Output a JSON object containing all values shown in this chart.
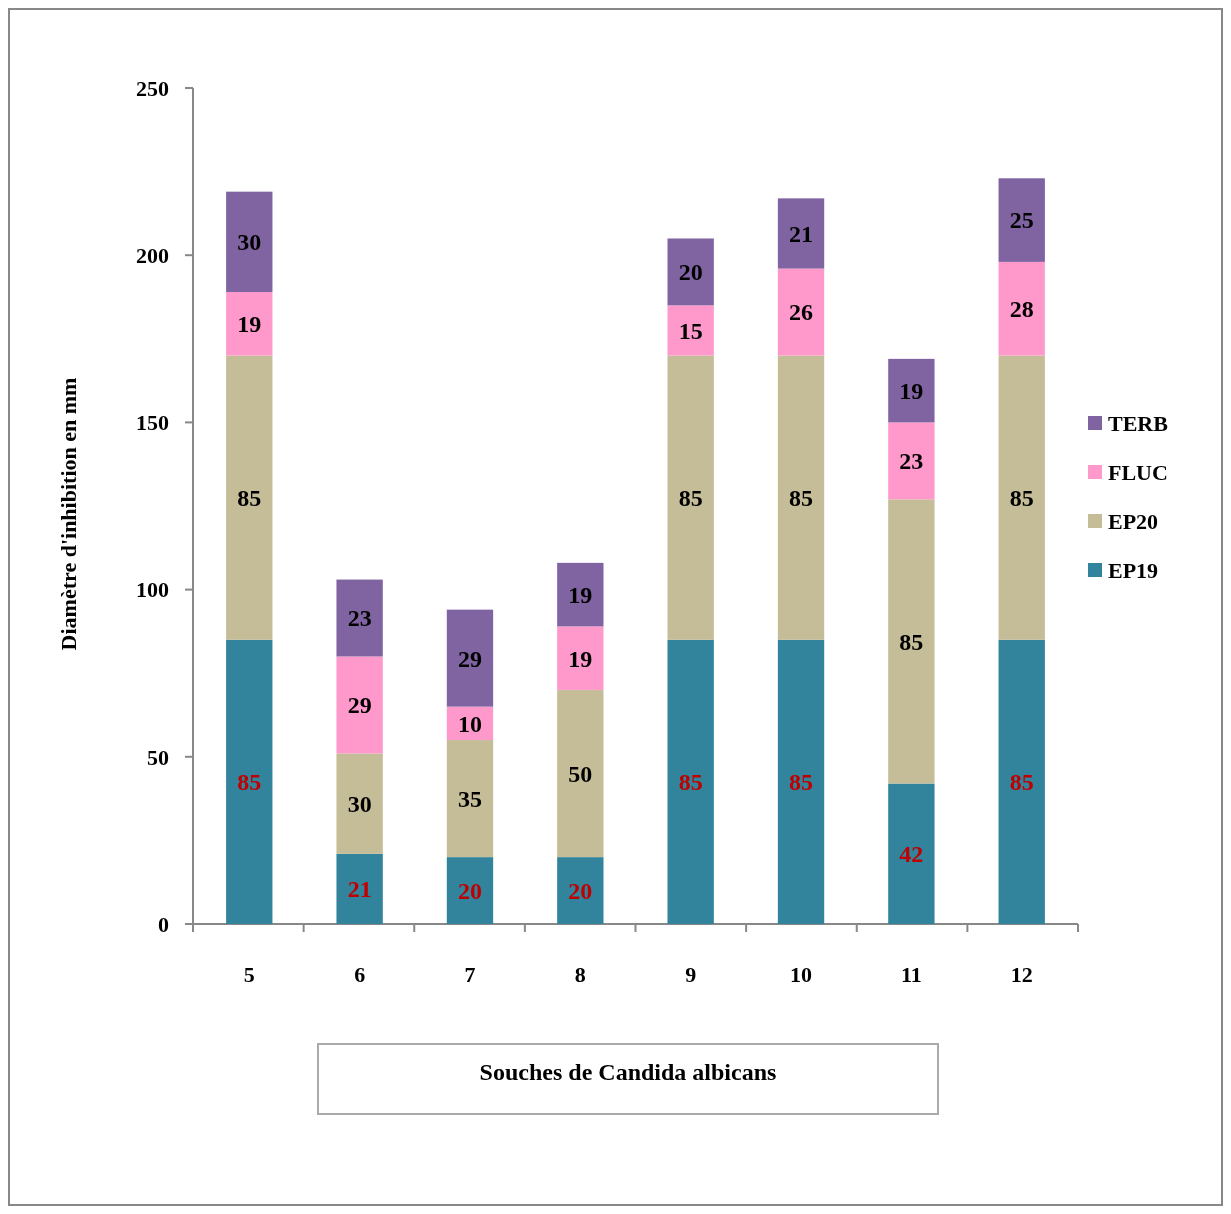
{
  "chart_data": {
    "type": "bar",
    "stacked": true,
    "xlabel": "Souches de Candida albicans",
    "ylabel": "Diamètre d'inhibition en mm",
    "categories": [
      "5",
      "6",
      "7",
      "8",
      "9",
      "10",
      "11",
      "12"
    ],
    "series": [
      {
        "name": "EP19",
        "color": "#31849b",
        "values": [
          85,
          21,
          20,
          20,
          85,
          85,
          42,
          85
        ]
      },
      {
        "name": "EP20",
        "color": "#c4bd97",
        "values": [
          85,
          30,
          35,
          50,
          85,
          85,
          85,
          85
        ]
      },
      {
        "name": "FLUC",
        "color": "#ff99cc",
        "values": [
          19,
          29,
          10,
          19,
          15,
          26,
          23,
          28
        ]
      },
      {
        "name": "TERB",
        "color": "#8064a2",
        "values": [
          30,
          23,
          29,
          19,
          20,
          21,
          19,
          25
        ]
      }
    ],
    "ylim": [
      0,
      250
    ],
    "yticks": [
      0,
      50,
      100,
      150,
      200,
      250
    ],
    "grid": false,
    "legend": "right",
    "data_labels": true
  }
}
